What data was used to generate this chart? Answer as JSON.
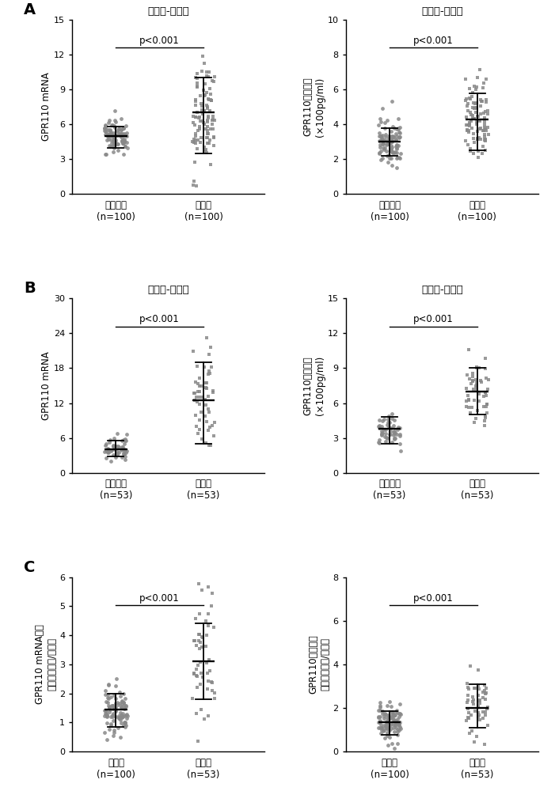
{
  "panel_A_left": {
    "title": "肺腺癌-腺泡型",
    "ylabel": "GPR110 mRNA",
    "group1_label": "癌旁组织\n(n=100)",
    "group2_label": "癌组织\n(n=100)",
    "group1_mean": 5.0,
    "group1_sd_low": 4.0,
    "group1_sd_high": 5.8,
    "group2_mean": 7.0,
    "group2_sd_low": 3.5,
    "group2_sd_high": 10.0,
    "ylim": [
      0,
      15
    ],
    "yticks": [
      0,
      3,
      6,
      9,
      12,
      15
    ],
    "n1": 100,
    "n2": 100,
    "pval": "p<0.001",
    "marker1": "o",
    "marker2": "s"
  },
  "panel_A_right": {
    "title": "肺腺癌-腺泡型",
    "ylabel": "GPR110蛋白表达\n(×100pg/ml)",
    "group1_label": "癌旁组织\n(n=100)",
    "group2_label": "癌组织\n(n=100)",
    "group1_mean": 3.0,
    "group1_sd_low": 2.2,
    "group1_sd_high": 3.8,
    "group2_mean": 4.3,
    "group2_sd_low": 2.5,
    "group2_sd_high": 5.8,
    "ylim": [
      0,
      10
    ],
    "yticks": [
      0,
      2,
      4,
      6,
      8,
      10
    ],
    "n1": 100,
    "n2": 100,
    "pval": "p<0.001",
    "marker1": "o",
    "marker2": "s"
  },
  "panel_B_left": {
    "title": "肺腺癌-实体型",
    "ylabel": "GPR110 mRNA",
    "group1_label": "癌旁组织\n(n=53)",
    "group2_label": "癌组织\n(n=53)",
    "group1_mean": 4.0,
    "group1_sd_low": 2.8,
    "group1_sd_high": 5.5,
    "group2_mean": 12.5,
    "group2_sd_low": 5.0,
    "group2_sd_high": 19.0,
    "ylim": [
      0,
      30
    ],
    "yticks": [
      0,
      6,
      12,
      18,
      24,
      30
    ],
    "n1": 53,
    "n2": 53,
    "pval": "p<0.001",
    "marker1": "o",
    "marker2": "s"
  },
  "panel_B_right": {
    "title": "肺腺癌-实体型",
    "ylabel": "GPR110蛋白表达\n(×100pg/ml)",
    "group1_label": "癌旁组织\n(n=53)",
    "group2_label": "癌组织\n(n=53)",
    "group1_mean": 3.8,
    "group1_sd_low": 2.5,
    "group1_sd_high": 4.8,
    "group2_mean": 7.0,
    "group2_sd_low": 5.0,
    "group2_sd_high": 9.0,
    "ylim": [
      0,
      15
    ],
    "yticks": [
      0,
      3,
      6,
      9,
      12,
      15
    ],
    "n1": 53,
    "n2": 53,
    "pval": "p<0.001",
    "marker1": "o",
    "marker2": "s"
  },
  "panel_C_left": {
    "title": "",
    "ylabel": "GPR110 mRNA表达\n差异倍数（癌/癌旁）",
    "group1_label": "腺泡型\n(n=100)",
    "group2_label": "实体型\n(n=53)",
    "group1_mean": 1.45,
    "group1_sd_low": 0.85,
    "group1_sd_high": 2.0,
    "group2_mean": 3.1,
    "group2_sd_low": 1.8,
    "group2_sd_high": 4.4,
    "ylim": [
      0,
      6
    ],
    "yticks": [
      0,
      1,
      2,
      3,
      4,
      5,
      6
    ],
    "n1": 100,
    "n2": 53,
    "pval": "p<0.001",
    "marker1": "o",
    "marker2": "s"
  },
  "panel_C_right": {
    "title": "",
    "ylabel": "GPR110蛋白表达\n差异倍数（癌/癌旁）",
    "group1_label": "腺泡型\n(n=100)",
    "group2_label": "实体型\n(n=53)",
    "group1_mean": 1.35,
    "group1_sd_low": 0.75,
    "group1_sd_high": 1.85,
    "group2_mean": 2.0,
    "group2_sd_low": 1.1,
    "group2_sd_high": 3.1,
    "ylim": [
      0,
      8
    ],
    "yticks": [
      0,
      2,
      4,
      6,
      8
    ],
    "n1": 100,
    "n2": 53,
    "pval": "p<0.001",
    "marker1": "o",
    "marker2": "s"
  },
  "dot_color": "#888888",
  "line_color": "#000000",
  "marker_size_circle": 12,
  "marker_size_square": 11,
  "label_fontsize": 8.5,
  "title_fontsize": 9.5,
  "tick_fontsize": 8,
  "pval_fontsize": 8.5,
  "panel_label_fontsize": 14
}
